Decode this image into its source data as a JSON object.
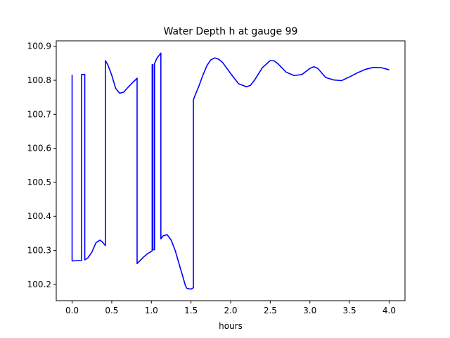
{
  "chart_data": {
    "type": "line",
    "title": "Water Depth h at gauge 99",
    "xlabel": "hours",
    "ylabel": "",
    "xlim": [
      -0.2,
      4.2
    ],
    "ylim": [
      100.152,
      100.916
    ],
    "xticks": [
      0.0,
      0.5,
      1.0,
      1.5,
      2.0,
      2.5,
      3.0,
      3.5,
      4.0
    ],
    "xtick_labels": [
      "0.0",
      "0.5",
      "1.0",
      "1.5",
      "2.0",
      "2.5",
      "3.0",
      "3.5",
      "4.0"
    ],
    "yticks": [
      100.2,
      100.3,
      100.4,
      100.5,
      100.6,
      100.7,
      100.8,
      100.9
    ],
    "ytick_labels": [
      "100.2",
      "100.3",
      "100.4",
      "100.5",
      "100.6",
      "100.7",
      "100.8",
      "100.9"
    ],
    "grid": false,
    "series": [
      {
        "color": "#0000ff",
        "x": [
          0.0,
          0.0,
          0.12,
          0.12,
          0.16,
          0.16,
          0.2,
          0.25,
          0.3,
          0.35,
          0.38,
          0.42,
          0.42,
          0.45,
          0.5,
          0.55,
          0.6,
          0.65,
          0.7,
          0.75,
          0.82,
          0.82,
          0.9,
          0.95,
          1.01,
          1.01,
          1.02,
          1.02,
          1.04,
          1.04,
          1.07,
          1.12,
          1.12,
          1.15,
          1.2,
          1.25,
          1.3,
          1.35,
          1.4,
          1.43,
          1.45,
          1.5,
          1.53,
          1.53,
          1.55,
          1.6,
          1.65,
          1.7,
          1.75,
          1.8,
          1.85,
          1.9,
          2.0,
          2.1,
          2.2,
          2.25,
          2.3,
          2.4,
          2.5,
          2.55,
          2.6,
          2.7,
          2.8,
          2.9,
          3.0,
          3.05,
          3.1,
          3.2,
          3.3,
          3.4,
          3.5,
          3.6,
          3.7,
          3.8,
          3.9,
          4.0
        ],
        "y": [
          100.816,
          100.269,
          100.27,
          100.817,
          100.817,
          100.272,
          100.278,
          100.295,
          100.322,
          100.33,
          100.325,
          100.314,
          100.858,
          100.846,
          100.815,
          100.776,
          100.762,
          100.765,
          100.778,
          100.79,
          100.806,
          100.261,
          100.28,
          100.29,
          100.298,
          100.846,
          100.846,
          100.302,
          100.302,
          100.849,
          100.865,
          100.88,
          100.334,
          100.343,
          100.346,
          100.33,
          100.3,
          100.26,
          100.22,
          100.196,
          100.188,
          100.186,
          100.19,
          100.742,
          100.755,
          100.783,
          100.815,
          100.843,
          100.86,
          100.866,
          100.862,
          100.852,
          100.82,
          100.79,
          100.781,
          100.785,
          100.8,
          100.837,
          100.858,
          100.857,
          100.848,
          100.824,
          100.814,
          100.817,
          100.835,
          100.84,
          100.835,
          100.808,
          100.801,
          100.799,
          100.81,
          100.822,
          100.832,
          100.838,
          100.837,
          100.831
        ]
      }
    ]
  }
}
